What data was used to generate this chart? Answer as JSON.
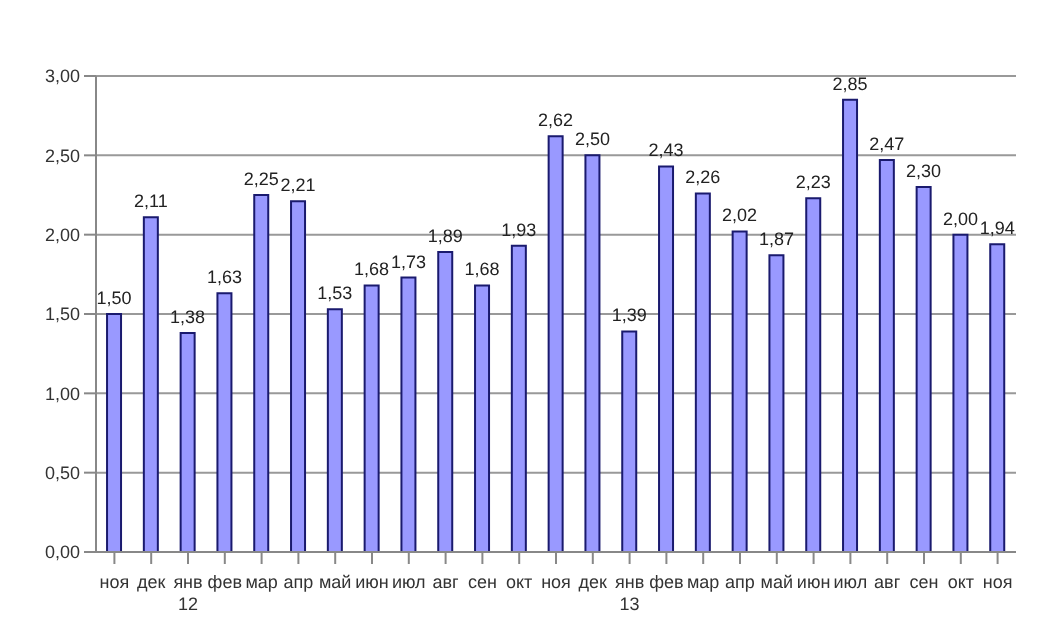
{
  "chart_data": {
    "type": "bar",
    "categories": [
      "ноя",
      "дек",
      "янв 12",
      "фев",
      "мар",
      "апр",
      "май",
      "июн",
      "июл",
      "авг",
      "сен",
      "окт",
      "ноя",
      "дек",
      "янв 13",
      "фев",
      "мар",
      "апр",
      "май",
      "июн",
      "июл",
      "авг",
      "сен",
      "окт",
      "ноя"
    ],
    "values": [
      1.5,
      2.11,
      1.38,
      1.63,
      2.25,
      2.21,
      1.53,
      1.68,
      1.73,
      1.89,
      1.68,
      1.93,
      2.62,
      2.5,
      1.39,
      2.43,
      2.26,
      2.02,
      1.87,
      2.23,
      2.85,
      2.47,
      2.3,
      2.0,
      1.94
    ],
    "value_labels": [
      "1,50",
      "2,11",
      "1,38",
      "1,63",
      "2,25",
      "2,21",
      "1,53",
      "1,68",
      "1,73",
      "1,89",
      "1,68",
      "1,93",
      "2,62",
      "2,50",
      "1,39",
      "2,43",
      "2,26",
      "2,02",
      "1,87",
      "2,23",
      "2,85",
      "2,47",
      "2,30",
      "2,00",
      "1,94"
    ],
    "color": "#9999ff",
    "ylim": [
      0,
      3
    ],
    "yticks": [
      {
        "value": 0,
        "label": "0,00"
      },
      {
        "value": 0.5,
        "label": "0,50"
      },
      {
        "value": 1,
        "label": "1,00"
      },
      {
        "value": 1.5,
        "label": "1,50"
      },
      {
        "value": 2,
        "label": "2,00"
      },
      {
        "value": 2.5,
        "label": "2,50"
      },
      {
        "value": 3,
        "label": "3,00"
      }
    ],
    "grid": "y"
  }
}
